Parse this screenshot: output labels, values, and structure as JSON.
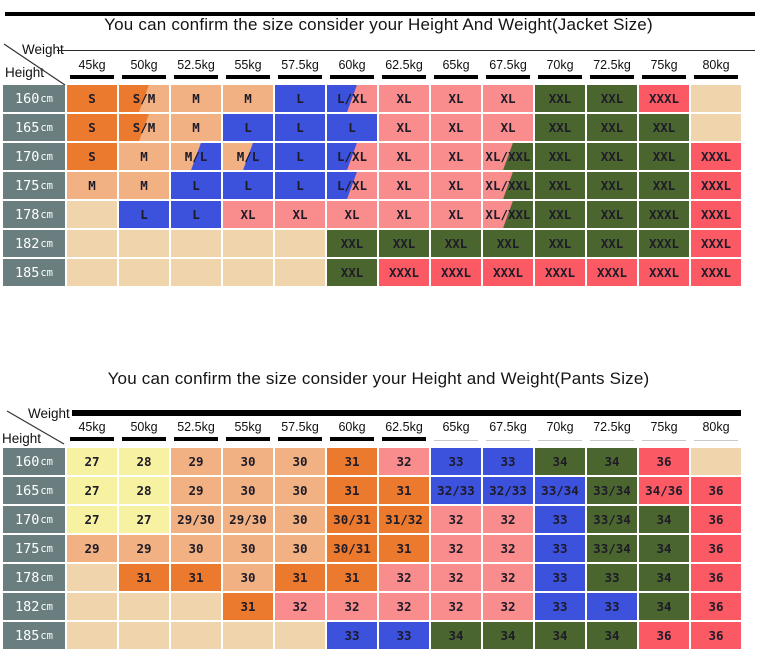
{
  "colors": {
    "orange": "#EC7A2E",
    "tan": "#F1B183",
    "beige": "#EFD4AC",
    "blue": "#3C51DC",
    "pink": "#F98C8C",
    "green": "#4B652F",
    "red": "#FB5964",
    "yellow": "#F6F2A2",
    "header_gray": "#6A7E80"
  },
  "chart_data": [
    {
      "type": "table",
      "title": "You can confirm the size consider  your Height And Weight(Jacket Size)",
      "corner": {
        "weight_label": "Weight",
        "height_label": "Height"
      },
      "columns": [
        "45kg",
        "50kg",
        "52.5kg",
        "55kg",
        "57.5kg",
        "60kg",
        "62.5kg",
        "65kg",
        "67.5kg",
        "70kg",
        "72.5kg",
        "75kg",
        "80kg"
      ],
      "rows": [
        {
          "height": "160cm",
          "cells": [
            [
              "S",
              "orange"
            ],
            [
              "S/M",
              "orange/tan"
            ],
            [
              "M",
              "tan"
            ],
            [
              "M",
              "tan"
            ],
            [
              "L",
              "blue"
            ],
            [
              "L/XL",
              "blue/pink"
            ],
            [
              "XL",
              "pink"
            ],
            [
              "XL",
              "pink"
            ],
            [
              "XL",
              "pink"
            ],
            [
              "XXL",
              "green"
            ],
            [
              "XXL",
              "green"
            ],
            [
              "XXXL",
              "red"
            ],
            [
              "",
              "beige"
            ]
          ]
        },
        {
          "height": "165cm",
          "cells": [
            [
              "S",
              "orange"
            ],
            [
              "S/M",
              "orange/tan"
            ],
            [
              "M",
              "tan"
            ],
            [
              "L",
              "blue"
            ],
            [
              "L",
              "blue"
            ],
            [
              "L",
              "blue"
            ],
            [
              "XL",
              "pink"
            ],
            [
              "XL",
              "pink"
            ],
            [
              "XL",
              "pink"
            ],
            [
              "XXL",
              "green"
            ],
            [
              "XXL",
              "green"
            ],
            [
              "XXL",
              "green"
            ],
            [
              "",
              "beige"
            ]
          ]
        },
        {
          "height": "170cm",
          "cells": [
            [
              "S",
              "orange"
            ],
            [
              "M",
              "tan"
            ],
            [
              "M/L",
              "tan/blue"
            ],
            [
              "M/L",
              "tan/blue"
            ],
            [
              "L",
              "blue"
            ],
            [
              "L/XL",
              "blue/pink"
            ],
            [
              "XL",
              "pink"
            ],
            [
              "XL",
              "pink"
            ],
            [
              "XL/XXL",
              "pink/green"
            ],
            [
              "XXL",
              "green"
            ],
            [
              "XXL",
              "green"
            ],
            [
              "XXL",
              "green"
            ],
            [
              "XXXL",
              "red"
            ]
          ]
        },
        {
          "height": "175cm",
          "cells": [
            [
              "M",
              "tan"
            ],
            [
              "M",
              "tan"
            ],
            [
              "L",
              "blue"
            ],
            [
              "L",
              "blue"
            ],
            [
              "L",
              "blue"
            ],
            [
              "L/XL",
              "blue/pink"
            ],
            [
              "XL",
              "pink"
            ],
            [
              "XL",
              "pink"
            ],
            [
              "XL/XXL",
              "pink/green"
            ],
            [
              "XXL",
              "green"
            ],
            [
              "XXL",
              "green"
            ],
            [
              "XXL",
              "green"
            ],
            [
              "XXXL",
              "red"
            ]
          ]
        },
        {
          "height": "178cm",
          "cells": [
            [
              "",
              "beige"
            ],
            [
              "L",
              "blue"
            ],
            [
              "L",
              "blue"
            ],
            [
              "XL",
              "pink"
            ],
            [
              "XL",
              "pink"
            ],
            [
              "XL",
              "pink"
            ],
            [
              "XL",
              "pink"
            ],
            [
              "XL",
              "pink"
            ],
            [
              "XL/XXL",
              "pink/green"
            ],
            [
              "XXL",
              "green"
            ],
            [
              "XXL",
              "green"
            ],
            [
              "XXXL",
              "green"
            ],
            [
              "XXXL",
              "red"
            ]
          ]
        },
        {
          "height": "182cm",
          "cells": [
            [
              "",
              "beige"
            ],
            [
              "",
              "beige"
            ],
            [
              "",
              "beige"
            ],
            [
              "",
              "beige"
            ],
            [
              "",
              "beige"
            ],
            [
              "XXL",
              "green"
            ],
            [
              "XXL",
              "green"
            ],
            [
              "XXL",
              "green"
            ],
            [
              "XXL",
              "green"
            ],
            [
              "XXL",
              "green"
            ],
            [
              "XXL",
              "green"
            ],
            [
              "XXXL",
              "green"
            ],
            [
              "XXXL",
              "red"
            ]
          ]
        },
        {
          "height": "185cm",
          "cells": [
            [
              "",
              "beige"
            ],
            [
              "",
              "beige"
            ],
            [
              "",
              "beige"
            ],
            [
              "",
              "beige"
            ],
            [
              "",
              "beige"
            ],
            [
              "XXL",
              "green"
            ],
            [
              "XXXL",
              "red"
            ],
            [
              "XXXL",
              "red"
            ],
            [
              "XXXL",
              "red"
            ],
            [
              "XXXL",
              "red"
            ],
            [
              "XXXL",
              "red"
            ],
            [
              "XXXL",
              "red"
            ],
            [
              "XXXL",
              "red"
            ]
          ]
        }
      ]
    },
    {
      "type": "table",
      "title": "You can confirm the size consider your Height and Weight(Pants Size)",
      "corner": {
        "weight_label": "Weight",
        "height_label": "Height"
      },
      "columns": [
        "45kg",
        "50kg",
        "52.5kg",
        "55kg",
        "57.5kg",
        "60kg",
        "62.5kg",
        "65kg",
        "67.5kg",
        "70kg",
        "72.5kg",
        "75kg",
        "80kg"
      ],
      "rows": [
        {
          "height": "160cm",
          "cells": [
            [
              "27",
              "yellow"
            ],
            [
              "28",
              "yellow"
            ],
            [
              "29",
              "tan"
            ],
            [
              "30",
              "tan"
            ],
            [
              "30",
              "tan"
            ],
            [
              "31",
              "orange"
            ],
            [
              "32",
              "pink"
            ],
            [
              "33",
              "blue"
            ],
            [
              "33",
              "blue"
            ],
            [
              "34",
              "green"
            ],
            [
              "34",
              "green"
            ],
            [
              "36",
              "red"
            ],
            [
              "",
              "beige"
            ]
          ]
        },
        {
          "height": "165cm",
          "cells": [
            [
              "27",
              "yellow"
            ],
            [
              "28",
              "yellow"
            ],
            [
              "29",
              "tan"
            ],
            [
              "30",
              "tan"
            ],
            [
              "30",
              "tan"
            ],
            [
              "31",
              "orange"
            ],
            [
              "31",
              "orange"
            ],
            [
              "32/33",
              "blue"
            ],
            [
              "32/33",
              "blue"
            ],
            [
              "33/34",
              "blue"
            ],
            [
              "33/34",
              "green"
            ],
            [
              "34/36",
              "red"
            ],
            [
              "36",
              "red"
            ]
          ]
        },
        {
          "height": "170cm",
          "cells": [
            [
              "27",
              "yellow"
            ],
            [
              "27",
              "yellow"
            ],
            [
              "29/30",
              "tan"
            ],
            [
              "29/30",
              "tan"
            ],
            [
              "30",
              "tan"
            ],
            [
              "30/31",
              "orange"
            ],
            [
              "31/32",
              "orange"
            ],
            [
              "32",
              "pink"
            ],
            [
              "32",
              "pink"
            ],
            [
              "33",
              "blue"
            ],
            [
              "33/34",
              "green"
            ],
            [
              "34",
              "green"
            ],
            [
              "36",
              "red"
            ]
          ]
        },
        {
          "height": "175cm",
          "cells": [
            [
              "29",
              "tan"
            ],
            [
              "29",
              "tan"
            ],
            [
              "30",
              "tan"
            ],
            [
              "30",
              "tan"
            ],
            [
              "30",
              "tan"
            ],
            [
              "30/31",
              "orange"
            ],
            [
              "31",
              "orange"
            ],
            [
              "32",
              "pink"
            ],
            [
              "32",
              "pink"
            ],
            [
              "33",
              "blue"
            ],
            [
              "33/34",
              "green"
            ],
            [
              "34",
              "green"
            ],
            [
              "36",
              "red"
            ]
          ]
        },
        {
          "height": "178cm",
          "cells": [
            [
              "",
              "beige"
            ],
            [
              "31",
              "orange"
            ],
            [
              "31",
              "orange"
            ],
            [
              "30",
              "tan"
            ],
            [
              "31",
              "orange"
            ],
            [
              "31",
              "orange"
            ],
            [
              "32",
              "pink"
            ],
            [
              "32",
              "pink"
            ],
            [
              "32",
              "pink"
            ],
            [
              "33",
              "blue"
            ],
            [
              "33",
              "green"
            ],
            [
              "34",
              "green"
            ],
            [
              "36",
              "red"
            ]
          ]
        },
        {
          "height": "182cm",
          "cells": [
            [
              "",
              "beige"
            ],
            [
              "",
              "beige"
            ],
            [
              "",
              "beige"
            ],
            [
              "31",
              "orange"
            ],
            [
              "32",
              "pink"
            ],
            [
              "32",
              "pink"
            ],
            [
              "32",
              "pink"
            ],
            [
              "32",
              "pink"
            ],
            [
              "32",
              "pink"
            ],
            [
              "33",
              "blue"
            ],
            [
              "33",
              "blue"
            ],
            [
              "34",
              "green"
            ],
            [
              "36",
              "red"
            ]
          ]
        },
        {
          "height": "185cm",
          "cells": [
            [
              "",
              "beige"
            ],
            [
              "",
              "beige"
            ],
            [
              "",
              "beige"
            ],
            [
              "",
              "beige"
            ],
            [
              "",
              "beige"
            ],
            [
              "33",
              "blue"
            ],
            [
              "33",
              "blue"
            ],
            [
              "34",
              "green"
            ],
            [
              "34",
              "green"
            ],
            [
              "34",
              "green"
            ],
            [
              "34",
              "green"
            ],
            [
              "36",
              "red"
            ],
            [
              "36",
              "red"
            ]
          ]
        }
      ]
    }
  ]
}
